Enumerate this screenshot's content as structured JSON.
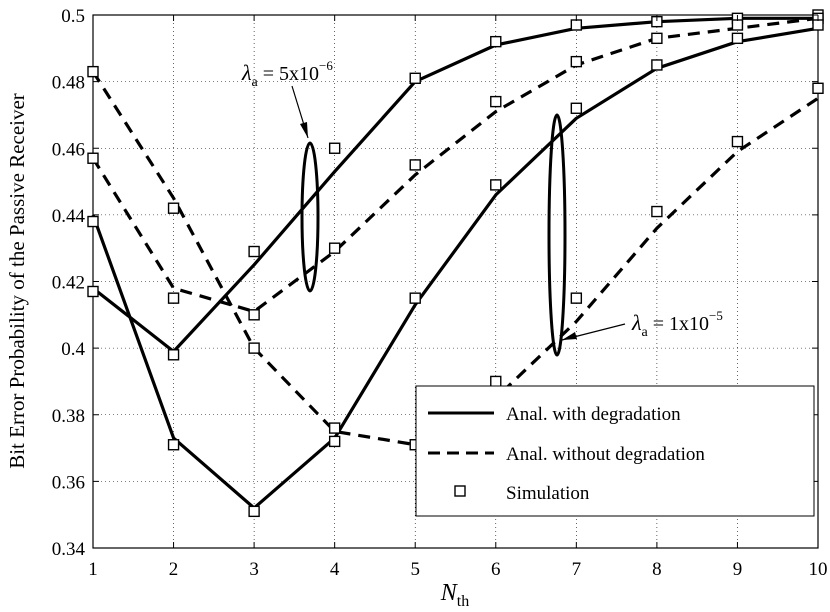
{
  "chart_data": {
    "type": "line",
    "xlabel": "N",
    "xlabel_sub": "th",
    "ylabel": "Bit Error Probability of the Passive  Receiver",
    "xlim": [
      1,
      10
    ],
    "ylim": [
      0.34,
      0.5
    ],
    "x_ticks": [
      1,
      2,
      3,
      4,
      5,
      6,
      7,
      8,
      9,
      10
    ],
    "y_ticks": [
      0.34,
      0.36,
      0.38,
      0.4,
      0.42,
      0.44,
      0.46,
      0.48,
      0.5
    ],
    "y_tick_labels": [
      "0.34",
      "0.36",
      "0.38",
      "0.4",
      "0.42",
      "0.44",
      "0.46",
      "0.48",
      "0.5"
    ],
    "grid": true,
    "legend_position": "bottom-right",
    "x": [
      1,
      2,
      3,
      4,
      5,
      6,
      7,
      8,
      9,
      10
    ],
    "series": [
      {
        "name": "Anal. with degradation",
        "style": "solid",
        "values": [
          0.418,
          0.399,
          0.425,
          0.453,
          0.48,
          0.491,
          0.496,
          0.498,
          0.499,
          0.499
        ]
      },
      {
        "name": "Anal. without degradation",
        "style": "dashed",
        "values": [
          0.457,
          0.418,
          0.411,
          0.429,
          0.452,
          0.471,
          0.485,
          0.493,
          0.496,
          0.499
        ]
      },
      {
        "name": "Anal. with degradation",
        "style": "solid",
        "values": [
          0.44,
          0.373,
          0.352,
          0.373,
          0.413,
          0.446,
          0.469,
          0.484,
          0.492,
          0.496
        ]
      },
      {
        "name": "Anal. without degradation",
        "style": "dashed",
        "values": [
          0.483,
          0.445,
          0.4,
          0.375,
          0.371,
          0.385,
          0.408,
          0.436,
          0.459,
          0.475
        ]
      }
    ],
    "simulation": [
      [
        0.417,
        0.398,
        0.429,
        0.46,
        0.481,
        0.492,
        0.497,
        0.498,
        0.499,
        0.5
      ],
      [
        0.457,
        0.415,
        0.41,
        0.43,
        0.455,
        0.474,
        0.486,
        0.493,
        0.497,
        0.499
      ],
      [
        0.438,
        0.371,
        0.351,
        0.372,
        0.415,
        0.449,
        0.472,
        0.485,
        0.493,
        0.497
      ],
      [
        0.483,
        0.442,
        0.4,
        0.376,
        0.371,
        0.39,
        0.415,
        0.441,
        0.462,
        0.478
      ]
    ],
    "legend": [
      {
        "label": "Anal. with degradation",
        "style": "solid"
      },
      {
        "label": "Anal. without degradation",
        "style": "dashed"
      },
      {
        "label": "Simulation",
        "style": "marker"
      }
    ],
    "annotations": [
      {
        "text": "λ",
        "sub": "a",
        "rest": " = 5x10",
        "sup": "−6"
      },
      {
        "text": "λ",
        "sub": "a",
        "rest": " = 1x10",
        "sup": "−5"
      }
    ]
  }
}
